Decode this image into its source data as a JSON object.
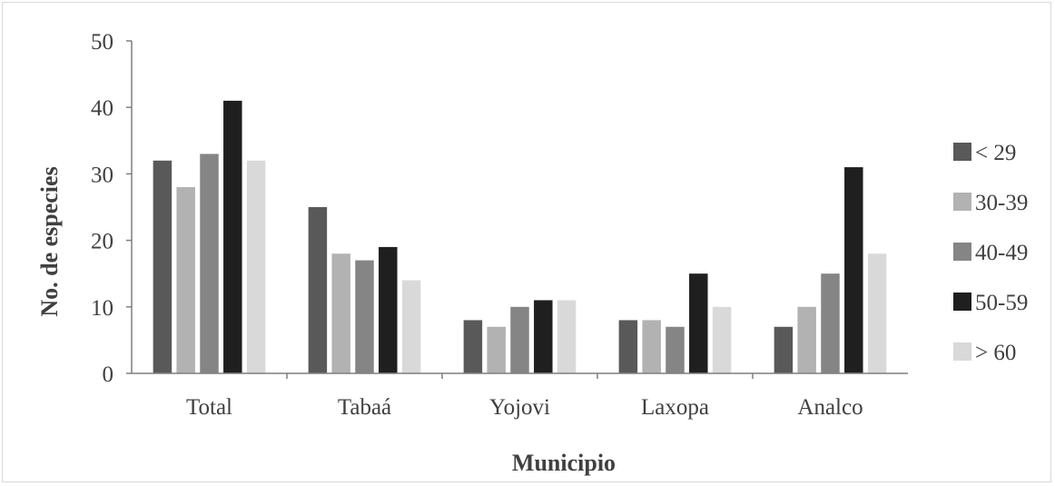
{
  "chart_data": {
    "type": "bar",
    "title": "",
    "xlabel": "Municipio",
    "ylabel": "No. de especies",
    "ylim": [
      0,
      50
    ],
    "yticks": [
      0,
      10,
      20,
      30,
      40,
      50
    ],
    "categories": [
      "Total",
      "Tabaá",
      "Yojovi",
      "Laxopa",
      "Analco"
    ],
    "series": [
      {
        "name": "< 29",
        "color": "#595959",
        "values": [
          32,
          25,
          8,
          8,
          7
        ]
      },
      {
        "name": "30-39",
        "color": "#b2b2b2",
        "values": [
          28,
          18,
          7,
          8,
          10
        ]
      },
      {
        "name": "40-49",
        "color": "#858585",
        "values": [
          33,
          17,
          10,
          7,
          15
        ]
      },
      {
        "name": "50-59",
        "color": "#1f1f1f",
        "values": [
          41,
          19,
          11,
          15,
          31
        ]
      },
      {
        "name": "> 60",
        "color": "#d9d9d9",
        "values": [
          32,
          14,
          11,
          10,
          18
        ]
      }
    ],
    "grid": false,
    "legend_position": "right"
  }
}
